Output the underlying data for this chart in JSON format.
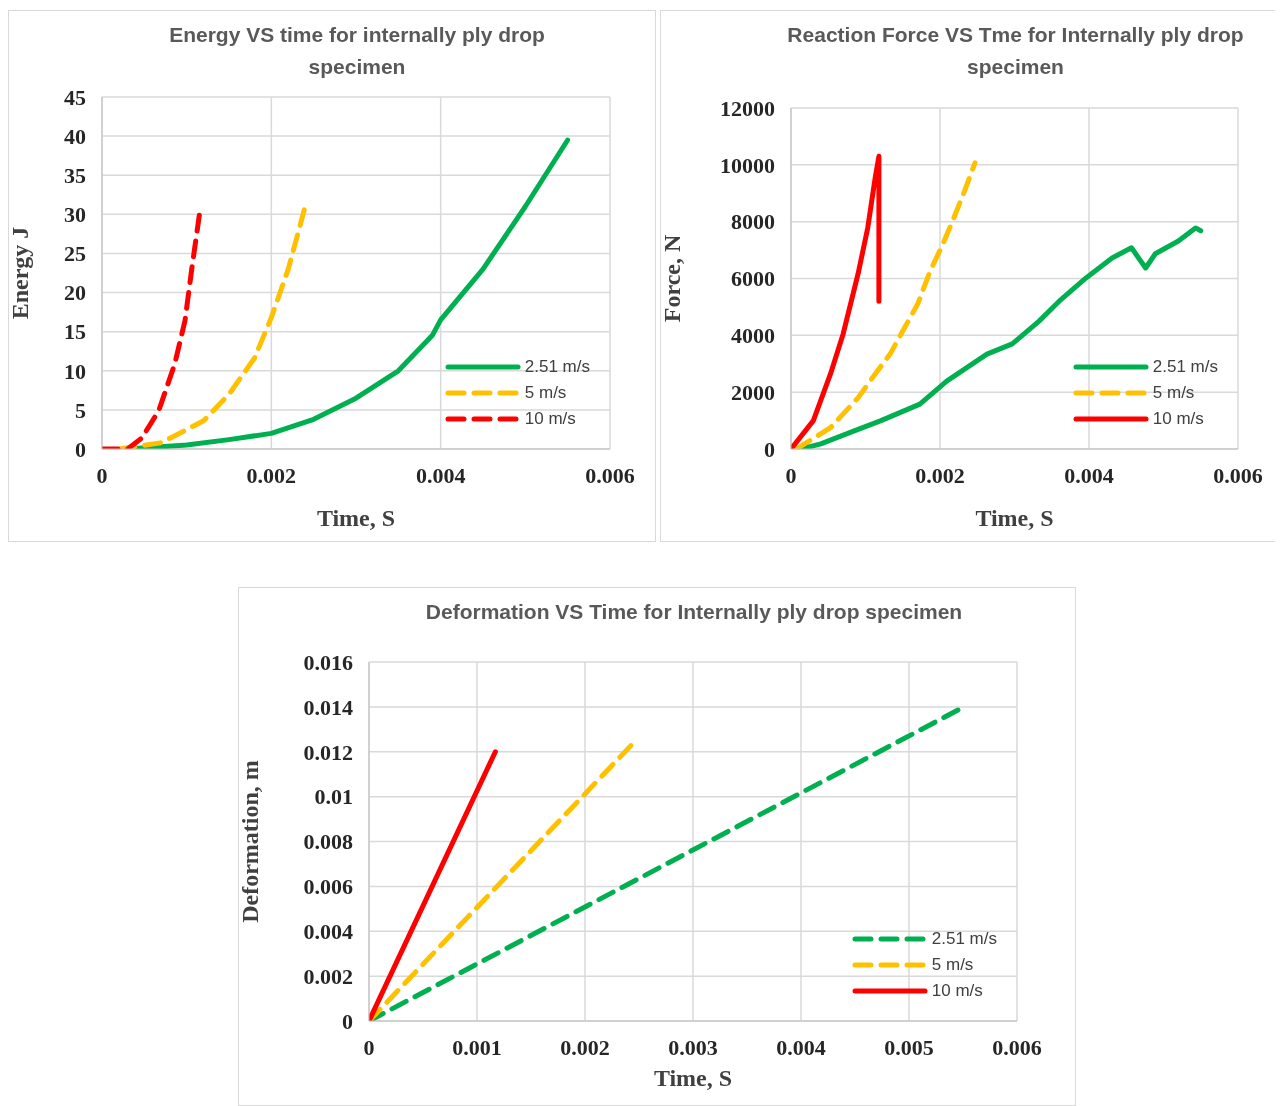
{
  "chart_data": [
    {
      "type": "line",
      "title": "Energy  VS time for internally ply drop specimen",
      "xlabel": "Time, S",
      "ylabel": "Energy J",
      "xlim": [
        0,
        0.006
      ],
      "xticks": [
        0,
        0.002,
        0.004,
        0.006
      ],
      "ylim": [
        0,
        45
      ],
      "yticks": [
        0,
        5,
        10,
        15,
        20,
        25,
        30,
        35,
        40,
        45
      ],
      "grid": true,
      "legend": "bottom right",
      "series": [
        {
          "name": "2.51 m/s",
          "color": "#00b050",
          "line_style": "solid",
          "x": [
            0.0003,
            0.001,
            0.0015,
            0.002,
            0.0025,
            0.003,
            0.0035,
            0.0039,
            0.004,
            0.0045,
            0.005,
            0.0055
          ],
          "values": [
            0,
            0.5,
            1.2,
            2,
            3.8,
            6.5,
            10,
            14.5,
            16.5,
            23,
            31,
            39.5
          ]
        },
        {
          "name": "5 m/s",
          "color": "#ffc000",
          "line_style": "dashed",
          "x": [
            0.0002,
            0.0007,
            0.0012,
            0.0015,
            0.0018,
            0.002,
            0.0022,
            0.0024
          ],
          "values": [
            0,
            0.8,
            3.6,
            7,
            11.6,
            16.8,
            23,
            31
          ]
        },
        {
          "name": "10 m/s",
          "color": "#ff0000",
          "line_style": "dashed",
          "x": [
            0,
            0.0003,
            0.00047,
            0.00067,
            0.00086,
            0.00098,
            0.00106,
            0.00116
          ],
          "values": [
            0,
            0,
            1.4,
            4.9,
            10.9,
            16.4,
            23,
            30.7
          ]
        }
      ]
    },
    {
      "type": "line",
      "title": "Reaction Force VS Tme  for Internally ply drop  specimen",
      "xlabel": "Time, S",
      "ylabel": "Force, N",
      "xlim": [
        0,
        0.006
      ],
      "xticks": [
        0,
        0.002,
        0.004,
        0.006
      ],
      "ylim": [
        0,
        12000
      ],
      "yticks": [
        0,
        2000,
        4000,
        6000,
        8000,
        10000,
        12000
      ],
      "grid": true,
      "legend": "bottom right",
      "series": [
        {
          "name": "2.51 m/s",
          "color": "#00b050",
          "line_style": "solid",
          "x": [
            0.00013,
            0.0004,
            0.00084,
            0.0012,
            0.00173,
            0.00209,
            0.00263,
            0.00297,
            0.00333,
            0.0036,
            0.00396,
            0.00431,
            0.00457,
            0.00476,
            0.00489,
            0.0052,
            0.00543,
            0.0055
          ],
          "values": [
            0,
            180,
            630,
            990,
            1580,
            2390,
            3340,
            3700,
            4500,
            5200,
            6020,
            6720,
            7080,
            6370,
            6870,
            7320,
            7780,
            7680
          ]
        },
        {
          "name": "5 m/s",
          "color": "#ffc000",
          "line_style": "dashed",
          "x": [
            7e-05,
            0.00053,
            0.0009,
            0.00113,
            0.00133,
            0.0015,
            0.0017,
            0.00187,
            0.00204,
            0.00217,
            0.00233,
            0.00247
          ],
          "values": [
            0,
            750,
            1800,
            2640,
            3340,
            4150,
            5100,
            6270,
            7220,
            8030,
            9080,
            10070
          ]
        },
        {
          "name": "10 m/s",
          "color": "#ff0000",
          "line_style": "solid",
          "x": [
            0,
            0.0003,
            0.00053,
            0.0007,
            0.0009,
            0.00103,
            0.00113,
            0.00118,
            0.00118
          ],
          "values": [
            0,
            1000,
            2640,
            4050,
            6160,
            7780,
            9540,
            10300,
            5200
          ]
        }
      ]
    },
    {
      "type": "line",
      "title": "Deformation VS Time  for Internally ply drop  specimen",
      "xlabel": "Time, S",
      "ylabel": "Deformation, m",
      "xlim": [
        0,
        0.006
      ],
      "xticks": [
        0,
        0.001,
        0.002,
        0.003,
        0.004,
        0.005,
        0.006
      ],
      "ylim": [
        0,
        0.016
      ],
      "yticks": [
        0,
        0.002,
        0.004,
        0.006,
        0.008,
        0.01,
        0.012,
        0.014,
        0.016
      ],
      "grid": true,
      "legend": "bottom right",
      "series": [
        {
          "name": "2.51 m/s",
          "color": "#00b050",
          "line_style": "dashed",
          "x": [
            0,
            0.00547
          ],
          "values": [
            0,
            0.0139
          ]
        },
        {
          "name": "5 m/s",
          "color": "#ffc000",
          "line_style": "dashed",
          "x": [
            0,
            0.00245
          ],
          "values": [
            0,
            0.0124
          ]
        },
        {
          "name": "10 m/s",
          "color": "#ff0000",
          "line_style": "solid",
          "x": [
            0,
            0.00117
          ],
          "values": [
            0,
            0.012
          ]
        }
      ]
    }
  ]
}
